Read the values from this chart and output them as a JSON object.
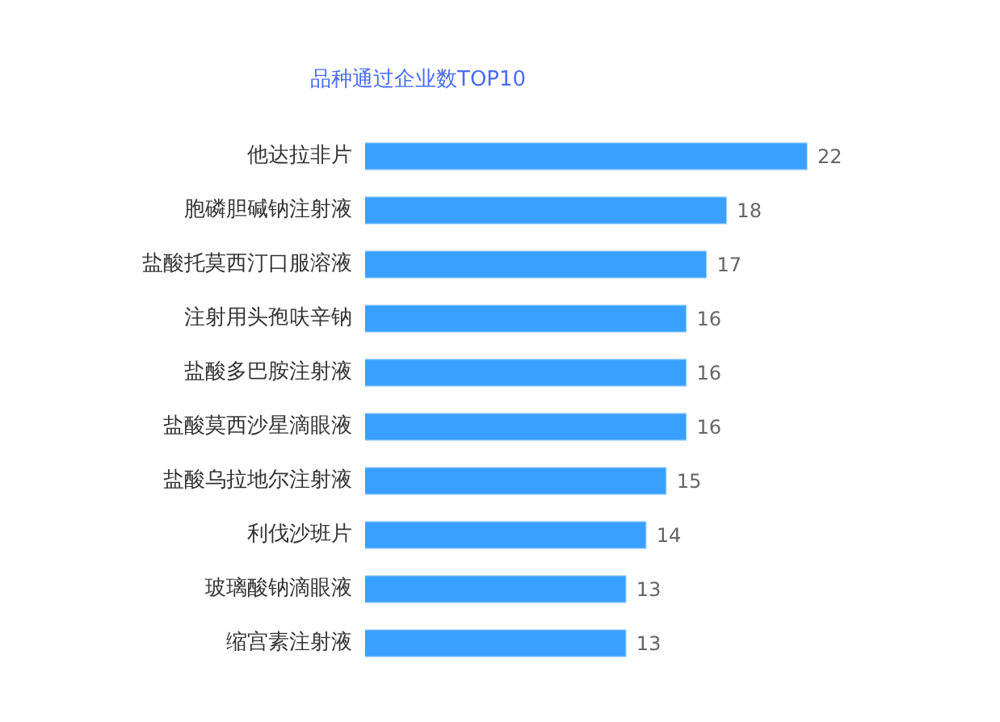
{
  "chart_data": {
    "type": "bar",
    "title": "品种通过企业数TOP10",
    "orientation": "horizontal",
    "categories": [
      "他达拉非片",
      "胞磷胆碱钠注射液",
      "盐酸托莫西汀口服溶液",
      "注射用头孢呋辛钠",
      "盐酸多巴胺注射液",
      "盐酸莫西沙星滴眼液",
      "盐酸乌拉地尔注射液",
      "利伐沙班片",
      "玻璃酸钠滴眼液",
      "缩宫素注射液"
    ],
    "values": [
      22,
      18,
      17,
      16,
      16,
      16,
      15,
      14,
      13,
      13
    ],
    "color": "#3aa0ff",
    "data_labels": true,
    "tick_labels": "y"
  }
}
